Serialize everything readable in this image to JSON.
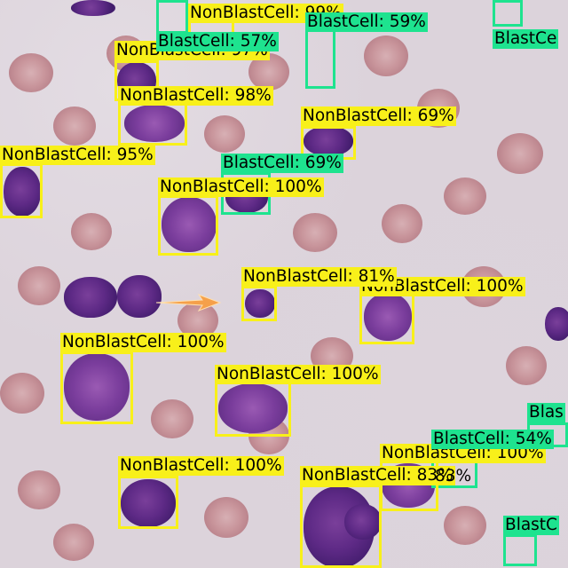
{
  "detections": [
    {
      "id": "d1",
      "label": "NonBlastCell: 99%",
      "cls": "NonBlastCell",
      "score": "99%"
    },
    {
      "id": "d2",
      "label": "BlastCell: 57%",
      "cls": "BlastCell",
      "score": "57%"
    },
    {
      "id": "d3",
      "label": "BlastCell: 59%",
      "cls": "BlastCell",
      "score": "59%"
    },
    {
      "id": "d4",
      "label": "BlastCe",
      "cls": "BlastCell",
      "score": ""
    },
    {
      "id": "d5",
      "label": "NonBlastCell: 97%",
      "cls": "NonBlastCell",
      "score": "97%"
    },
    {
      "id": "d6",
      "label": "NonBlastCell: 98%",
      "cls": "NonBlastCell",
      "score": "98%"
    },
    {
      "id": "d7",
      "label": "NonBlastCell: 69%",
      "cls": "NonBlastCell",
      "score": "69%"
    },
    {
      "id": "d8",
      "label": "NonBlastCell: 95%",
      "cls": "NonBlastCell",
      "score": "95%"
    },
    {
      "id": "d9",
      "label": "BlastCell: 69%",
      "cls": "BlastCell",
      "score": "69%"
    },
    {
      "id": "d10",
      "label": "NonBlastCell: 100%",
      "cls": "NonBlastCell",
      "score": "100%"
    },
    {
      "id": "d11",
      "label": "NonBlastCell: 81%",
      "cls": "NonBlastCell",
      "score": "81%"
    },
    {
      "id": "d12",
      "label": "NonBlastCell: 100%",
      "cls": "NonBlastCell",
      "score": "100%"
    },
    {
      "id": "d13",
      "label": "NonBlastCell: 100%",
      "cls": "NonBlastCell",
      "score": "100%"
    },
    {
      "id": "d14",
      "label": "NonBlastCell: 100%",
      "cls": "NonBlastCell",
      "score": "100%"
    },
    {
      "id": "d15",
      "label": "Blas",
      "cls": "BlastCell",
      "score": ""
    },
    {
      "id": "d16",
      "label": "BlastCell: 54%",
      "cls": "BlastCell",
      "score": "54%"
    },
    {
      "id": "d17",
      "label": "NonBlastCell: 100%",
      "cls": "NonBlastCell",
      "score": "100%"
    },
    {
      "id": "d18",
      "label": "NonBlastCell: 100%",
      "cls": "NonBlastCell",
      "score": "100%"
    },
    {
      "id": "d19",
      "label": "NonBlastCell: 83%",
      "cls": "NonBlastCell",
      "score": "83%"
    },
    {
      "id": "d20",
      "label": "BlastC",
      "cls": "BlastCell",
      "score": ""
    }
  ],
  "colors": {
    "NonBlastCell": "#f8f01a",
    "BlastCell": "#1ee38f"
  }
}
